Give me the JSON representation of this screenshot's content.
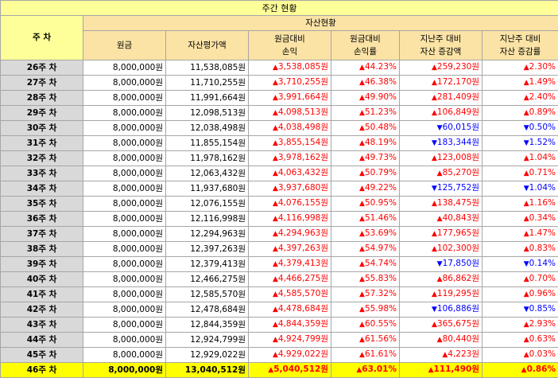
{
  "title": "주간 현황",
  "header": {
    "week_label": "주 차",
    "group_label": "자산현황",
    "columns": [
      [
        "원금"
      ],
      [
        "자산평가액"
      ],
      [
        "원금대비",
        "손익"
      ],
      [
        "원금대비",
        "손익률"
      ],
      [
        "지난주 대비",
        "자산 증감액"
      ],
      [
        "지난주 대비",
        "자산 증감률"
      ]
    ]
  },
  "colors": {
    "up": "#ff0000",
    "down": "#0000ff",
    "highlight": "#ffff00"
  },
  "rows": [
    {
      "week": "26주 차",
      "principal": "8,000,000원",
      "value": "11,538,085원",
      "pnl": "3,538,085원",
      "pnl_rate": "44.23%",
      "chg": "259,230원",
      "chg_dir": "up",
      "chg_rate": "2.30%"
    },
    {
      "week": "27주 차",
      "principal": "8,000,000원",
      "value": "11,710,255원",
      "pnl": "3,710,255원",
      "pnl_rate": "46.38%",
      "chg": "172,170원",
      "chg_dir": "up",
      "chg_rate": "1.49%"
    },
    {
      "week": "28주 차",
      "principal": "8,000,000원",
      "value": "11,991,664원",
      "pnl": "3,991,664원",
      "pnl_rate": "49.90%",
      "chg": "281,409원",
      "chg_dir": "up",
      "chg_rate": "2.40%"
    },
    {
      "week": "29주 차",
      "principal": "8,000,000원",
      "value": "12,098,513원",
      "pnl": "4,098,513원",
      "pnl_rate": "51.23%",
      "chg": "106,849원",
      "chg_dir": "up",
      "chg_rate": "0.89%"
    },
    {
      "week": "30주 차",
      "principal": "8,000,000원",
      "value": "12,038,498원",
      "pnl": "4,038,498원",
      "pnl_rate": "50.48%",
      "chg": "60,015원",
      "chg_dir": "down",
      "chg_rate": "0.50%"
    },
    {
      "week": "31주 차",
      "principal": "8,000,000원",
      "value": "11,855,154원",
      "pnl": "3,855,154원",
      "pnl_rate": "48.19%",
      "chg": "183,344원",
      "chg_dir": "down",
      "chg_rate": "1.52%"
    },
    {
      "week": "32주 차",
      "principal": "8,000,000원",
      "value": "11,978,162원",
      "pnl": "3,978,162원",
      "pnl_rate": "49.73%",
      "chg": "123,008원",
      "chg_dir": "up",
      "chg_rate": "1.04%"
    },
    {
      "week": "33주 차",
      "principal": "8,000,000원",
      "value": "12,063,432원",
      "pnl": "4,063,432원",
      "pnl_rate": "50.79%",
      "chg": "85,270원",
      "chg_dir": "up",
      "chg_rate": "0.71%"
    },
    {
      "week": "34주 차",
      "principal": "8,000,000원",
      "value": "11,937,680원",
      "pnl": "3,937,680원",
      "pnl_rate": "49.22%",
      "chg": "125,752원",
      "chg_dir": "down",
      "chg_rate": "1.04%"
    },
    {
      "week": "35주 차",
      "principal": "8,000,000원",
      "value": "12,076,155원",
      "pnl": "4,076,155원",
      "pnl_rate": "50.95%",
      "chg": "138,475원",
      "chg_dir": "up",
      "chg_rate": "1.16%"
    },
    {
      "week": "36주 차",
      "principal": "8,000,000원",
      "value": "12,116,998원",
      "pnl": "4,116,998원",
      "pnl_rate": "51.46%",
      "chg": "40,843원",
      "chg_dir": "up",
      "chg_rate": "0.34%"
    },
    {
      "week": "37주 차",
      "principal": "8,000,000원",
      "value": "12,294,963원",
      "pnl": "4,294,963원",
      "pnl_rate": "53.69%",
      "chg": "177,965원",
      "chg_dir": "up",
      "chg_rate": "1.47%"
    },
    {
      "week": "38주 차",
      "principal": "8,000,000원",
      "value": "12,397,263원",
      "pnl": "4,397,263원",
      "pnl_rate": "54.97%",
      "chg": "102,300원",
      "chg_dir": "up",
      "chg_rate": "0.83%"
    },
    {
      "week": "39주 차",
      "principal": "8,000,000원",
      "value": "12,379,413원",
      "pnl": "4,379,413원",
      "pnl_rate": "54.74%",
      "chg": "17,850원",
      "chg_dir": "down",
      "chg_rate": "0.14%"
    },
    {
      "week": "40주 차",
      "principal": "8,000,000원",
      "value": "12,466,275원",
      "pnl": "4,466,275원",
      "pnl_rate": "55.83%",
      "chg": "86,862원",
      "chg_dir": "up",
      "chg_rate": "0.70%"
    },
    {
      "week": "41주 차",
      "principal": "8,000,000원",
      "value": "12,585,570원",
      "pnl": "4,585,570원",
      "pnl_rate": "57.32%",
      "chg": "119,295원",
      "chg_dir": "up",
      "chg_rate": "0.96%"
    },
    {
      "week": "42주 차",
      "principal": "8,000,000원",
      "value": "12,478,684원",
      "pnl": "4,478,684원",
      "pnl_rate": "55.98%",
      "chg": "106,886원",
      "chg_dir": "down",
      "chg_rate": "0.85%"
    },
    {
      "week": "43주 차",
      "principal": "8,000,000원",
      "value": "12,844,359원",
      "pnl": "4,844,359원",
      "pnl_rate": "60.55%",
      "chg": "365,675원",
      "chg_dir": "up",
      "chg_rate": "2.93%"
    },
    {
      "week": "44주 차",
      "principal": "8,000,000원",
      "value": "12,924,799원",
      "pnl": "4,924,799원",
      "pnl_rate": "61.56%",
      "chg": "80,440원",
      "chg_dir": "up",
      "chg_rate": "0.63%"
    },
    {
      "week": "45주 차",
      "principal": "8,000,000원",
      "value": "12,929,022원",
      "pnl": "4,929,022원",
      "pnl_rate": "61.61%",
      "chg": "4,223원",
      "chg_dir": "up",
      "chg_rate": "0.03%"
    },
    {
      "week": "46주 차",
      "principal": "8,000,000원",
      "value": "13,040,512원",
      "pnl": "5,040,512원",
      "pnl_rate": "63.01%",
      "chg": "111,490원",
      "chg_dir": "up",
      "chg_rate": "0.86%",
      "highlight": true
    }
  ]
}
